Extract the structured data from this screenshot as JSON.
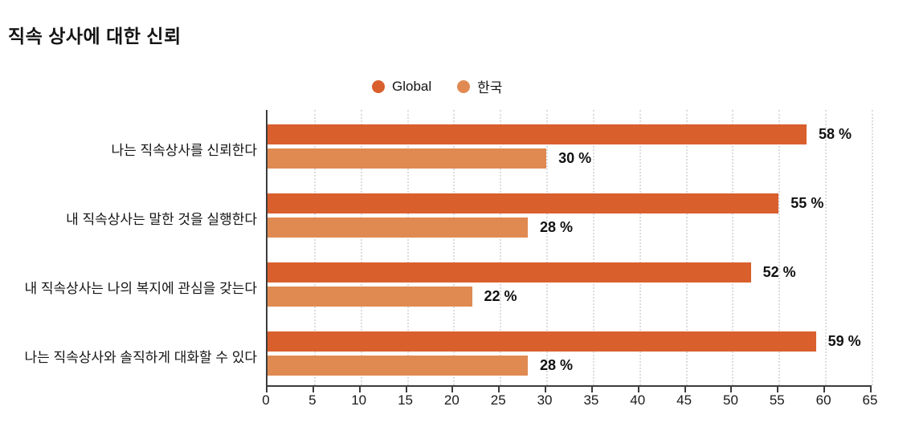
{
  "title": "직속 상사에 대한 신뢰",
  "legend": {
    "items": [
      {
        "label": "Global",
        "color": "#d95f2d"
      },
      {
        "label": "한국",
        "color": "#e08a52"
      }
    ]
  },
  "chart_data": {
    "type": "bar",
    "orientation": "horizontal",
    "title": "직속 상사에 대한 신뢰",
    "categories": [
      "나는 직속상사를 신뢰한다",
      "내 직속상사는 말한 것을 실행한다",
      "내 직속상사는 나의 복지에 관심을 갖는다",
      "나는 직속상사와 솔직하게 대화할 수 있다"
    ],
    "series": [
      {
        "name": "Global",
        "color": "#d95f2d",
        "values": [
          58,
          55,
          52,
          59
        ]
      },
      {
        "name": "한국",
        "color": "#e08a52",
        "values": [
          30,
          28,
          22,
          28
        ]
      }
    ],
    "data_labels": [
      [
        "58 %",
        "55 %",
        "52 %",
        "59 %"
      ],
      [
        "30 %",
        "28 %",
        "22 %",
        "28 %"
      ]
    ],
    "value_suffix": " %",
    "xlim": [
      0,
      65
    ],
    "x_ticks": [
      0,
      5,
      10,
      15,
      20,
      25,
      30,
      35,
      40,
      45,
      50,
      55,
      60,
      65
    ],
    "grid": "vertical-dotted",
    "legend_position": "top-center"
  }
}
